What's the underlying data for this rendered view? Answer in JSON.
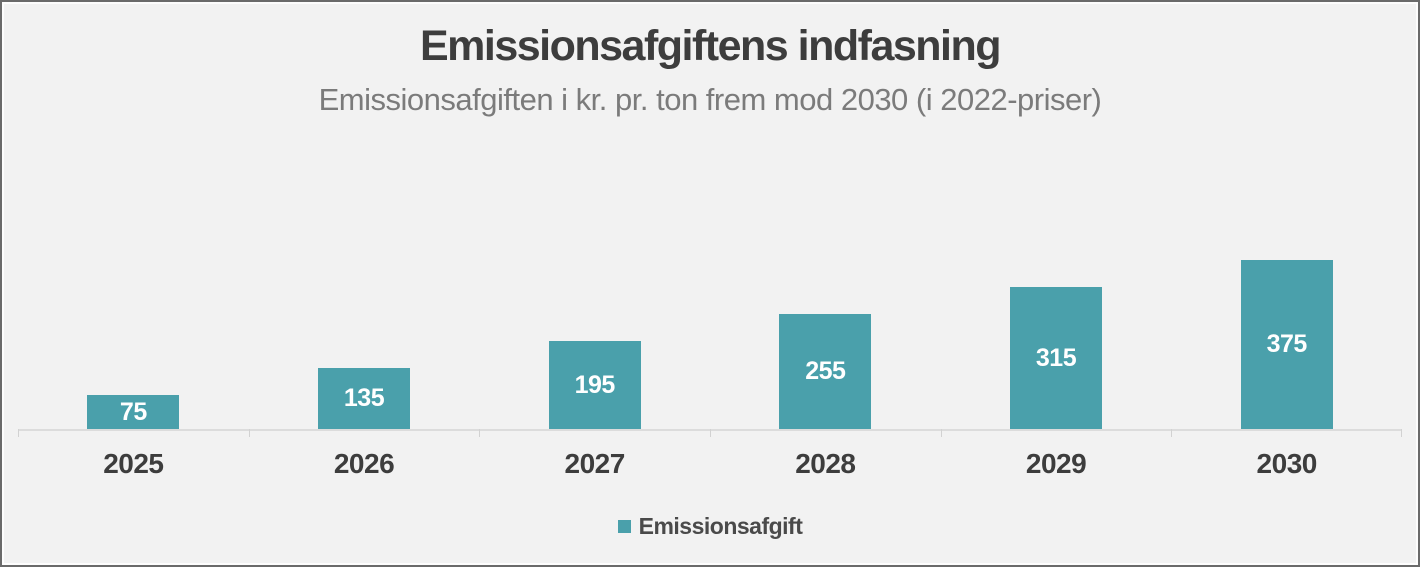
{
  "chart": {
    "title": "Emissionsafgiftens indfasning",
    "subtitle": "Emissionsafgiften i kr. pr. ton frem mod 2030 (i 2022-priser)",
    "legend": {
      "label": "Emissionsafgift",
      "marker_color": "#4aa0ab"
    }
  },
  "chart_data": {
    "type": "bar",
    "categories": [
      "2025",
      "2026",
      "2027",
      "2028",
      "2029",
      "2030"
    ],
    "values": [
      75,
      135,
      195,
      255,
      315,
      375
    ],
    "series": [
      {
        "name": "Emissionsafgift",
        "values": [
          75,
          135,
          195,
          255,
          315,
          375
        ]
      }
    ],
    "title": "Emissionsafgiftens indfasning",
    "subtitle": "Emissionsafgiften i kr. pr. ton frem mod 2030 (i 2022-priser)",
    "xlabel": "",
    "ylabel": "",
    "ylim": [
      0,
      400
    ],
    "grid": false,
    "legend_position": "bottom",
    "data_label_position": "center",
    "colors": {
      "bar": "#4aa0ab",
      "data_label": "#ffffff",
      "axis_line": "#dcdcdc",
      "title": "#3d3d3d",
      "subtitle": "#7b7b7b",
      "category_label": "#3d3d3d",
      "background": "#f2f2f2"
    }
  }
}
